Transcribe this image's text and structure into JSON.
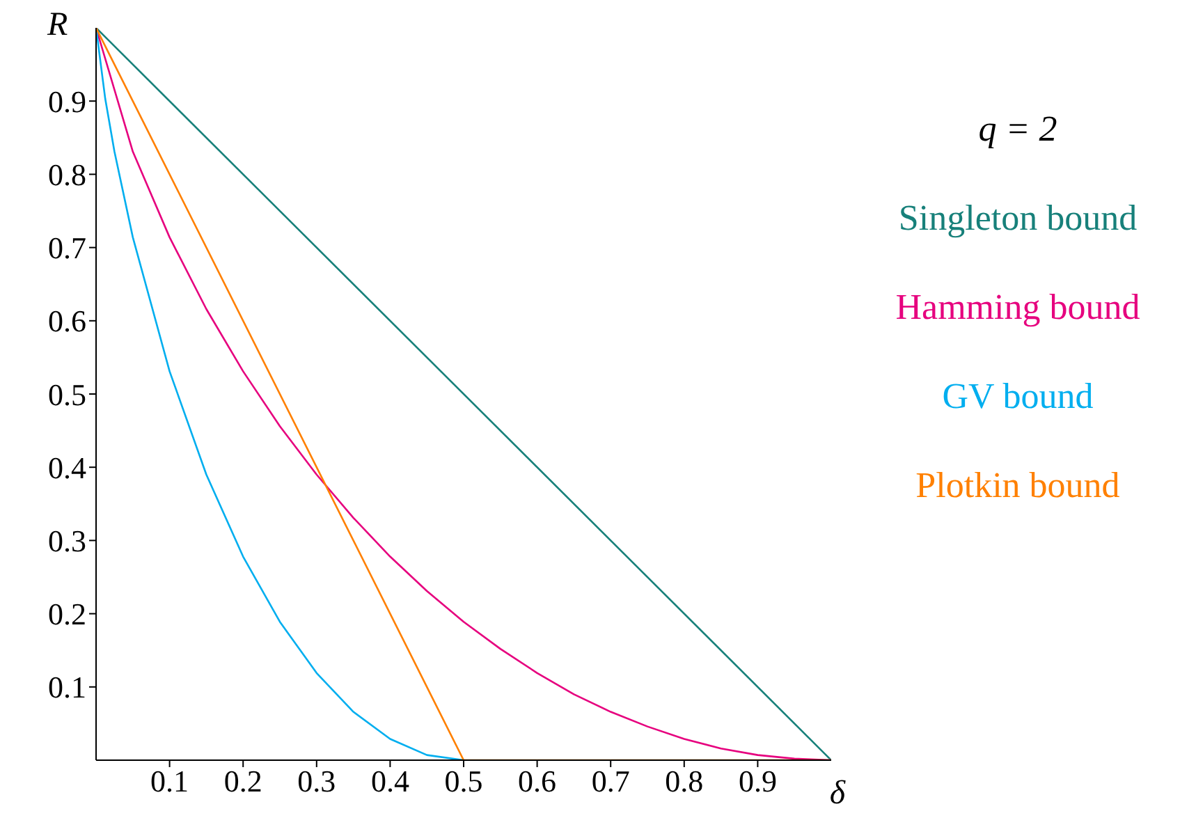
{
  "chart_data": {
    "type": "line",
    "xlabel": "δ",
    "ylabel": "R",
    "xlim": [
      0,
      1
    ],
    "ylim": [
      0,
      1
    ],
    "xticks": [
      0.1,
      0.2,
      0.3,
      0.4,
      0.5,
      0.6,
      0.7,
      0.8,
      0.9
    ],
    "yticks": [
      0.1,
      0.2,
      0.3,
      0.4,
      0.5,
      0.6,
      0.7,
      0.8,
      0.9
    ],
    "grid": false,
    "legend": "right",
    "annotations": [
      "q = 2"
    ],
    "series": [
      {
        "name": "Singleton bound",
        "color": "#17807a",
        "x": [
          0,
          1
        ],
        "values": [
          1,
          0
        ]
      },
      {
        "name": "Hamming bound",
        "color": "#e6007e",
        "x": [
          0,
          0.05,
          0.1,
          0.15,
          0.2,
          0.25,
          0.3,
          0.35,
          0.4,
          0.45,
          0.5,
          0.55,
          0.6,
          0.65,
          0.7,
          0.75,
          0.8,
          0.85,
          0.9,
          0.95,
          1
        ],
        "values": [
          1,
          0.831,
          0.714,
          0.616,
          0.531,
          0.456,
          0.39,
          0.331,
          0.278,
          0.231,
          0.189,
          0.152,
          0.119,
          0.09,
          0.066,
          0.046,
          0.029,
          0.016,
          0.007,
          0.002,
          0
        ]
      },
      {
        "name": "GV bound",
        "color": "#00aeef",
        "x": [
          0,
          0.0125,
          0.025,
          0.05,
          0.1,
          0.15,
          0.2,
          0.25,
          0.3,
          0.35,
          0.4,
          0.45,
          0.5
        ],
        "values": [
          1,
          0.903,
          0.831,
          0.714,
          0.531,
          0.39,
          0.278,
          0.189,
          0.119,
          0.066,
          0.029,
          0.007,
          0
        ]
      },
      {
        "name": "Plotkin bound",
        "color": "#ff8000",
        "x": [
          0,
          0.5,
          1
        ],
        "values": [
          1,
          0,
          0
        ]
      }
    ]
  }
}
